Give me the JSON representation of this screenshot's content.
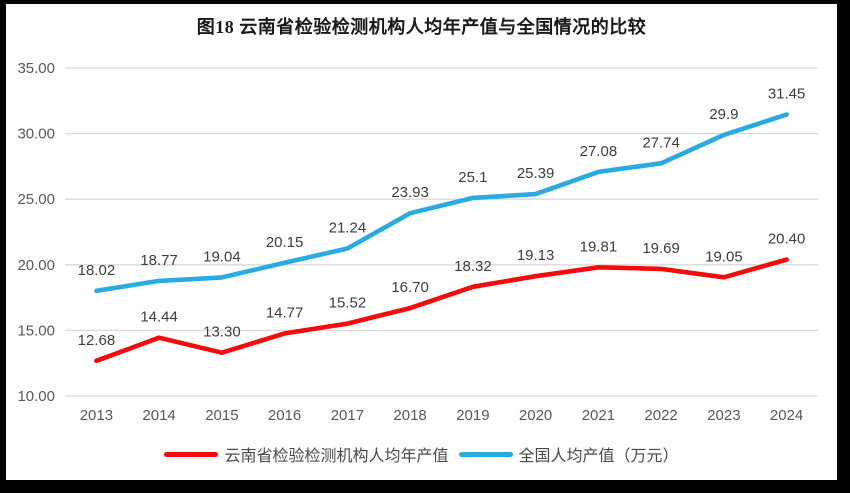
{
  "frame": {
    "background": "#000000",
    "card_background": "#ffffff"
  },
  "chart_data": {
    "type": "line",
    "title": "图18 云南省检验检测机构人均年产值与全国情况的比较",
    "categories": [
      "2013",
      "2014",
      "2015",
      "2016",
      "2017",
      "2018",
      "2019",
      "2020",
      "2021",
      "2022",
      "2023",
      "2024"
    ],
    "series": [
      {
        "name": "云南省检验检测机构人均年产值",
        "color": "#f40b0b",
        "values": [
          12.68,
          14.44,
          13.3,
          14.77,
          15.52,
          16.7,
          18.32,
          19.13,
          19.81,
          19.69,
          19.05,
          20.4
        ],
        "labels": [
          "12.68",
          "14.44",
          "13.30",
          "14.77",
          "15.52",
          "16.70",
          "18.32",
          "19.13",
          "19.81",
          "19.69",
          "19.05",
          "20.40"
        ]
      },
      {
        "name": "全国人均产值（万元）",
        "color": "#29abe2",
        "values": [
          18.02,
          18.77,
          19.04,
          20.15,
          21.24,
          23.93,
          25.1,
          25.39,
          27.08,
          27.74,
          29.9,
          31.45
        ],
        "labels": [
          "18.02",
          "18.77",
          "19.04",
          "20.15",
          "21.24",
          "23.93",
          "25.1",
          "25.39",
          "27.08",
          "27.74",
          "29.9",
          "31.45"
        ]
      }
    ],
    "ylim": [
      10,
      35
    ],
    "yticks": [
      "10.00",
      "15.00",
      "20.00",
      "25.00",
      "30.00",
      "35.00"
    ],
    "grid": true,
    "gridline_color": "#d9d9d9",
    "axis_label_color": "#595959",
    "data_label_color": "#3d3d3d",
    "legend_position": "bottom",
    "xlabel": "",
    "ylabel": ""
  }
}
